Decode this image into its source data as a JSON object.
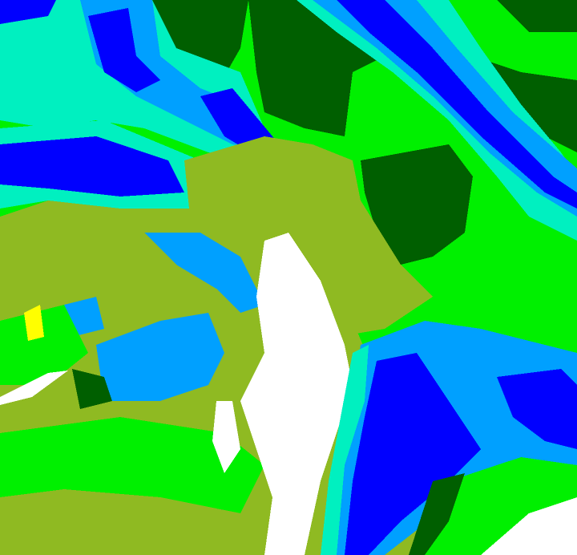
{
  "map": {
    "type": "classified raster",
    "class_colors": {
      "olive": "#8fba22",
      "green": "#00f000",
      "dark_green": "#005f00",
      "aquamarine": "#00f0c0",
      "light_blue": "#00a0ff",
      "blue": "#0000ff",
      "white": "#ffffff",
      "yellow": "#ffff00"
    }
  }
}
